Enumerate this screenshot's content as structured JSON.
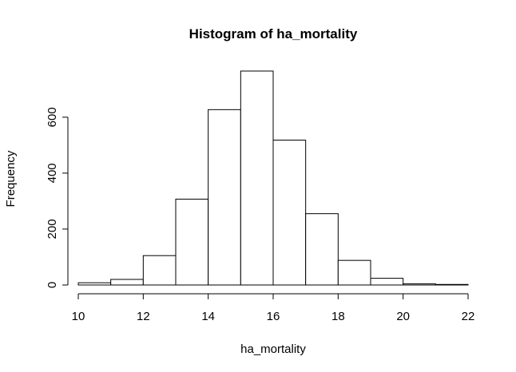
{
  "chart_data": {
    "type": "bar",
    "title": "Histogram of ha_mortality",
    "xlabel": "ha_mortality",
    "ylabel": "Frequency",
    "bins": [
      {
        "from": 10,
        "to": 11,
        "count": 8
      },
      {
        "from": 11,
        "to": 12,
        "count": 20
      },
      {
        "from": 12,
        "to": 13,
        "count": 105
      },
      {
        "from": 13,
        "to": 14,
        "count": 307
      },
      {
        "from": 14,
        "to": 15,
        "count": 627
      },
      {
        "from": 15,
        "to": 16,
        "count": 765
      },
      {
        "from": 16,
        "to": 17,
        "count": 518
      },
      {
        "from": 17,
        "to": 18,
        "count": 255
      },
      {
        "from": 18,
        "to": 19,
        "count": 88
      },
      {
        "from": 19,
        "to": 20,
        "count": 24
      },
      {
        "from": 20,
        "to": 21,
        "count": 4
      },
      {
        "from": 21,
        "to": 22,
        "count": 2
      }
    ],
    "xlim": [
      10,
      22
    ],
    "ylim": [
      0,
      765
    ],
    "x_ticks": [
      10,
      12,
      14,
      16,
      18,
      20,
      22
    ],
    "y_ticks": [
      0,
      200,
      400,
      600
    ],
    "grid": false,
    "bar_fill": "#ffffff",
    "bar_stroke": "#000000"
  }
}
